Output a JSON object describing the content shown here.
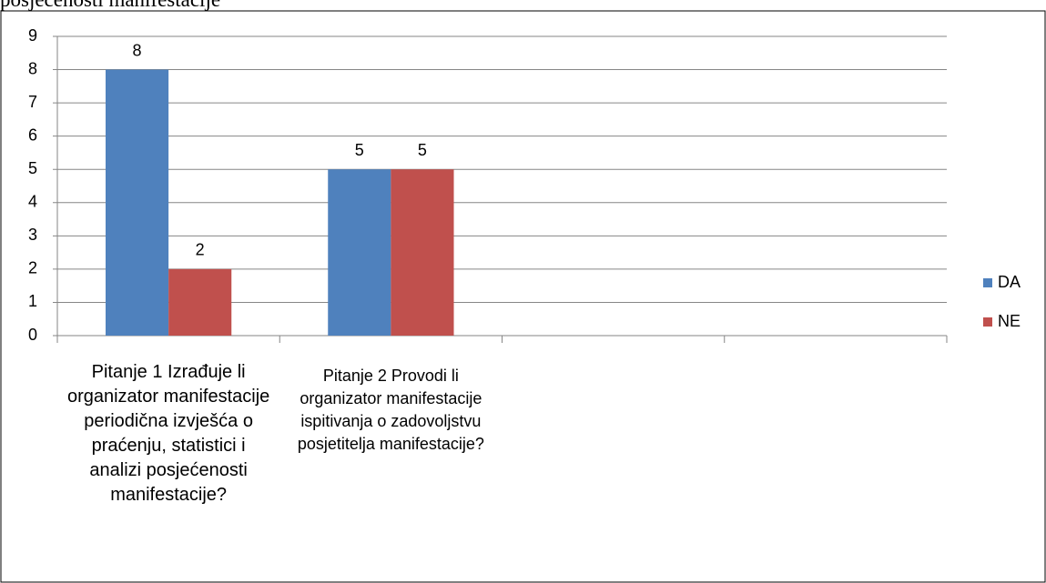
{
  "chart_data": {
    "type": "bar",
    "title": "posjećenosti manifestacije",
    "categories": [
      "Pitanje 1 Izrađuje li organizator manifestacije periodična izvješća o praćenju, statistici i analizi posjećenosti manifestacije?",
      "Pitanje 2 Provodi li organizator manifestacije ispitivanja o zadovoljstvu posjetitelja manifestacije?",
      null,
      null
    ],
    "series": [
      {
        "name": "DA",
        "color": "#4f81bd",
        "values": [
          8,
          5,
          null,
          null
        ]
      },
      {
        "name": "NE",
        "color": "#c0504d",
        "values": [
          2,
          5,
          null,
          null
        ]
      }
    ],
    "ylim": [
      0,
      9
    ],
    "yticks": [
      0,
      1,
      2,
      3,
      4,
      5,
      6,
      7,
      8,
      9
    ],
    "grid": true,
    "legend": "right",
    "data_labels": true
  }
}
